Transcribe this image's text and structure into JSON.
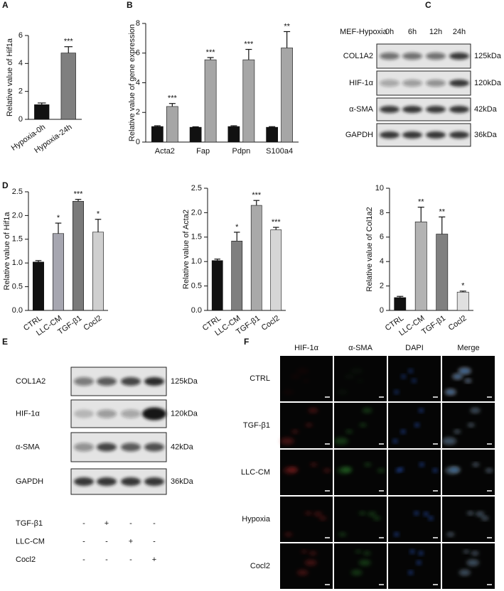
{
  "chart_data": [
    {
      "type": "bar",
      "panel": "A",
      "ylabel": "Relative value of Hif1a",
      "categories": [
        "Hypoxia-0h",
        "Hypoxia-24h"
      ],
      "values": [
        1.05,
        4.75
      ],
      "errors": [
        0.12,
        0.45
      ],
      "colors": [
        "#111111",
        "#7f7f7f"
      ],
      "annotations": [
        null,
        "***"
      ],
      "ylim": [
        0,
        6
      ],
      "yticks": [
        0,
        2,
        4,
        6
      ]
    },
    {
      "type": "bar",
      "panel": "B",
      "ylabel": "Relative value of gene expression",
      "categories": [
        "Acta2",
        "Fap",
        "Pdpn",
        "S100a4"
      ],
      "series": [
        {
          "color": "#111111",
          "values": [
            1.05,
            1.0,
            1.05,
            1.0
          ],
          "errors": [
            0.05,
            0.03,
            0.05,
            0.04
          ]
        },
        {
          "color": "#a6a6a6",
          "values": [
            2.4,
            5.55,
            5.55,
            6.35
          ],
          "errors": [
            0.2,
            0.15,
            0.7,
            1.1
          ],
          "annotations": [
            "***",
            "***",
            "***",
            "**"
          ]
        }
      ],
      "ylim": [
        0,
        8
      ],
      "yticks": [
        0,
        2,
        4,
        6,
        8
      ]
    },
    {
      "type": "bar",
      "panel": "D",
      "ylabel": "Relative value of Hif1a",
      "categories": [
        "CTRL",
        "LLC-CM",
        "TGF-β1",
        "Cocl2"
      ],
      "values": [
        1.02,
        1.62,
        2.3,
        1.65
      ],
      "errors": [
        0.03,
        0.22,
        0.04,
        0.27
      ],
      "colors": [
        "#111111",
        "#a6a6b0",
        "#7a7a7a",
        "#cfcfcf"
      ],
      "annotations": [
        null,
        "*",
        "***",
        "*"
      ],
      "ylim": [
        0,
        2.5
      ],
      "yticks": [
        {
          "value": 0,
          "label": "0.0"
        },
        0.5,
        {
          "value": 1,
          "label": "1.0"
        },
        1.5,
        {
          "value": 2,
          "label": "2.0"
        },
        2.5
      ]
    },
    {
      "type": "bar",
      "ylabel": "Relative value of Acta2",
      "categories": [
        "CTRL",
        "LLC-CM",
        "TGF-β1",
        "Cocl2"
      ],
      "values": [
        1.02,
        1.42,
        2.15,
        1.65
      ],
      "errors": [
        0.03,
        0.18,
        0.1,
        0.05
      ],
      "colors": [
        "#111111",
        "#7f7f7f",
        "#a9a9a9",
        "#d6d6d6"
      ],
      "annotations": [
        null,
        "*",
        "***",
        "***"
      ],
      "ylim": [
        0,
        2.5
      ],
      "yticks": [
        {
          "value": 0,
          "label": "0.0"
        },
        0.5,
        {
          "value": 1,
          "label": "1.0"
        },
        1.5,
        {
          "value": 2,
          "label": "2.0"
        },
        2.5
      ]
    },
    {
      "type": "bar",
      "ylabel": "Relative value of Col1a2",
      "categories": [
        "CTRL",
        "LLC-CM",
        "TGF-β1",
        "Cocl2"
      ],
      "values": [
        1.05,
        7.25,
        6.25,
        1.5
      ],
      "errors": [
        0.1,
        1.2,
        1.4,
        0.08
      ],
      "colors": [
        "#111111",
        "#b3b3b3",
        "#808080",
        "#e0e0e0"
      ],
      "annotations": [
        null,
        "**",
        "**",
        "*"
      ],
      "ylim": [
        0,
        10
      ],
      "yticks": [
        0,
        2,
        4,
        6,
        8,
        10
      ]
    }
  ],
  "blot_c": {
    "panel": "C",
    "header": "MEF-Hypoxia",
    "lanes": [
      "0h",
      "6h",
      "12h",
      "24h"
    ],
    "rows": [
      {
        "label": "COL1A2",
        "size": "125kDa"
      },
      {
        "label": "HIF-1α",
        "size": "120kDa"
      },
      {
        "label": "α-SMA",
        "size": "42kDa"
      },
      {
        "label": "GAPDH",
        "size": "36kDa"
      }
    ]
  },
  "blot_e": {
    "panel": "E",
    "rows": [
      {
        "label": "COL1A2",
        "size": "125kDa"
      },
      {
        "label": "HIF-1α",
        "size": "120kDa"
      },
      {
        "label": "α-SMA",
        "size": "42kDa"
      },
      {
        "label": "GAPDH",
        "size": "36kDa"
      }
    ],
    "treatments": [
      {
        "label": "TGF-β1",
        "signs": [
          "-",
          "+",
          "-",
          "-"
        ]
      },
      {
        "label": "LLC-CM",
        "signs": [
          "-",
          "-",
          "+",
          "-"
        ]
      },
      {
        "label": "Cocl2",
        "signs": [
          "-",
          "-",
          "-",
          "+"
        ]
      }
    ]
  },
  "micrographs": {
    "panel": "F",
    "columns": [
      "HIF-1α",
      "α-SMA",
      "DAPI",
      "Merge"
    ],
    "rows": [
      "CTRL",
      "TGF-β1",
      "LLC-CM",
      "Hypoxia",
      "Cocl2"
    ]
  }
}
